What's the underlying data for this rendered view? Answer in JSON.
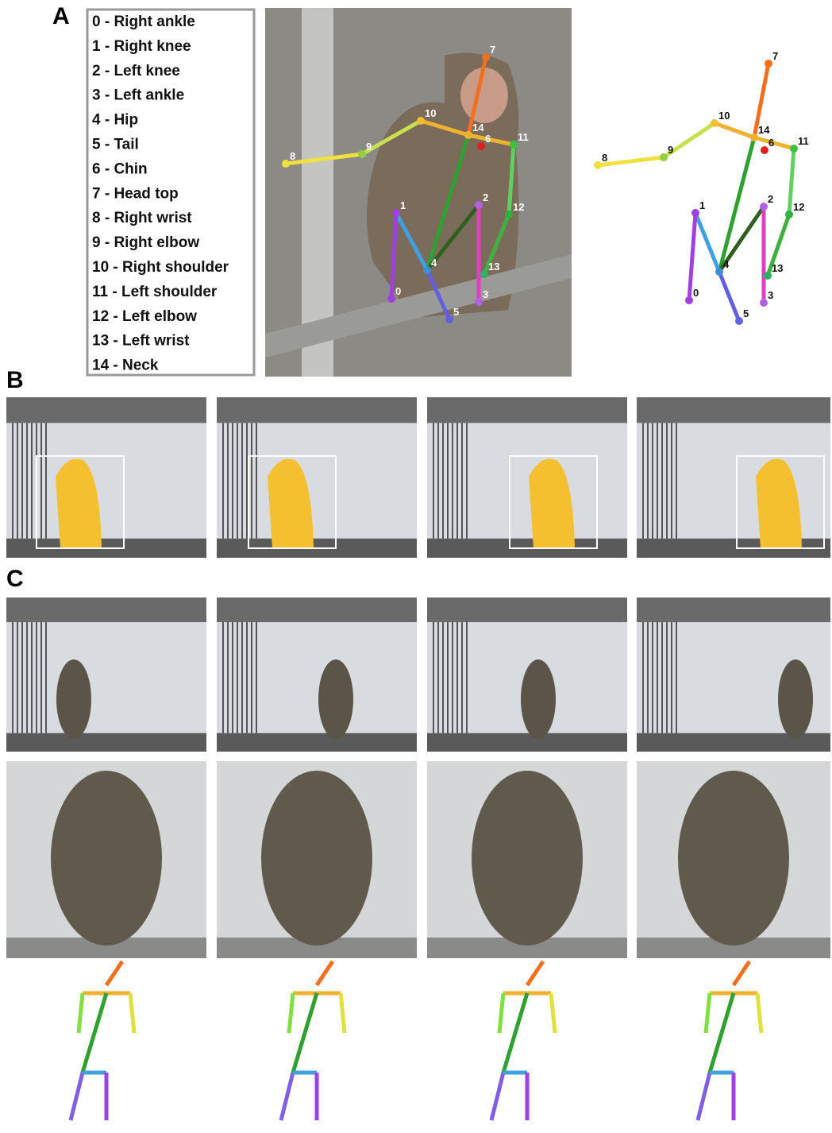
{
  "panel_a": {
    "label": "A",
    "keypoints": [
      "0 - Right ankle",
      "1 - Right knee",
      "2 - Left knee",
      "3 - Left ankle",
      "4 - Hip",
      "5 - Tail",
      "6 - Chin",
      "7 - Head top",
      "8 - Right wrist",
      "9 - Right elbow",
      "10 - Right shoulder",
      "11 - Left shoulder",
      "12 - Left elbow",
      "13 - Left wrist",
      "14 - Neck"
    ],
    "photo_node_labels": [
      "0",
      "1",
      "2",
      "3",
      "4",
      "5",
      "6",
      "7",
      "8",
      "9",
      "10",
      "11",
      "12",
      "13",
      "14"
    ],
    "skeleton_node_labels": [
      "0",
      "1",
      "2",
      "3",
      "4",
      "5",
      "6",
      "7",
      "8",
      "9",
      "10",
      "11",
      "12",
      "13",
      "14"
    ]
  },
  "panel_b": {
    "label": "B"
  },
  "panel_c": {
    "label": "C"
  }
}
